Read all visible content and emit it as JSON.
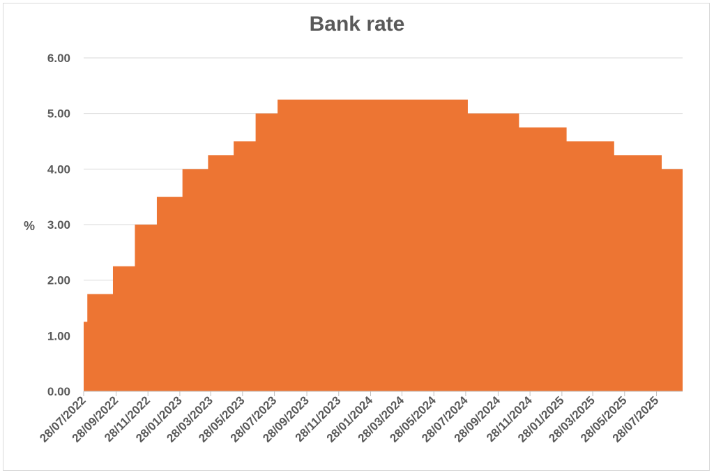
{
  "chart_data": {
    "type": "area",
    "title": "Bank rate",
    "xlabel": "",
    "ylabel": "%",
    "ylim": [
      0,
      6
    ],
    "yticks": [
      "0.00",
      "1.00",
      "2.00",
      "3.00",
      "4.00",
      "5.00",
      "6.00"
    ],
    "xlim": [
      "2022-07-28",
      "2025-09-16"
    ],
    "xticks": [
      {
        "date": "2022-07-28",
        "label": "28/07/2022"
      },
      {
        "date": "2022-09-28",
        "label": "28/09/2022"
      },
      {
        "date": "2022-11-28",
        "label": "28/11/2022"
      },
      {
        "date": "2023-01-28",
        "label": "28/01/2023"
      },
      {
        "date": "2023-03-28",
        "label": "28/03/2023"
      },
      {
        "date": "2023-05-28",
        "label": "28/05/2023"
      },
      {
        "date": "2023-07-28",
        "label": "28/07/2023"
      },
      {
        "date": "2023-09-28",
        "label": "28/09/2023"
      },
      {
        "date": "2023-11-28",
        "label": "28/11/2023"
      },
      {
        "date": "2024-01-28",
        "label": "28/01/2024"
      },
      {
        "date": "2024-03-28",
        "label": "28/03/2024"
      },
      {
        "date": "2024-05-28",
        "label": "28/05/2024"
      },
      {
        "date": "2024-07-28",
        "label": "28/07/2024"
      },
      {
        "date": "2024-09-28",
        "label": "28/09/2024"
      },
      {
        "date": "2024-11-28",
        "label": "28/11/2024"
      },
      {
        "date": "2025-01-28",
        "label": "28/01/2025"
      },
      {
        "date": "2025-03-28",
        "label": "28/03/2025"
      },
      {
        "date": "2025-05-28",
        "label": "28/05/2025"
      },
      {
        "date": "2025-07-28",
        "label": "28/07/2025"
      }
    ],
    "grid": true,
    "color": "#ED7533",
    "series": [
      {
        "x": [
          "2022-07-28",
          "2022-08-04",
          "2022-09-22",
          "2022-11-03",
          "2022-12-15",
          "2023-02-02",
          "2023-03-23",
          "2023-05-11",
          "2023-06-22",
          "2023-08-03",
          "2024-08-01",
          "2024-11-07",
          "2025-02-06",
          "2025-05-08",
          "2025-08-07"
        ],
        "values": [
          1.25,
          1.75,
          2.25,
          3.0,
          3.5,
          4.0,
          4.25,
          4.5,
          5.0,
          5.25,
          5.0,
          4.75,
          4.5,
          4.25,
          4.0
        ]
      }
    ]
  }
}
